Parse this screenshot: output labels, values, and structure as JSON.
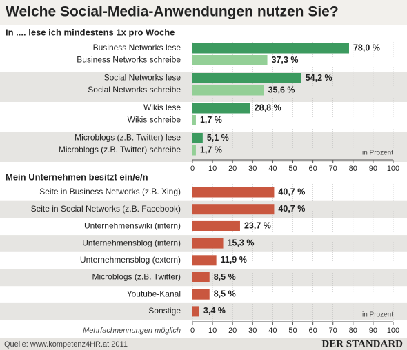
{
  "title": "Welche Social-Media-Anwendungen nutzen Sie?",
  "source": "Quelle: www.kompetenz4HR.at 2011",
  "logo": "DER STANDARD",
  "chart_data": [
    {
      "type": "bar",
      "title": "In .... lese ich mindestens 1x pro Woche",
      "categories": [
        "Business Networks lese",
        "Business Networks schreibe",
        "Social Networks lese",
        "Social Networks schreibe",
        "Wikis lese",
        "Wikis schreibe",
        "Microblogs (z.B. Twitter) lese",
        "Microblogs (z.B. Twitter) schreibe"
      ],
      "values": [
        78.0,
        37.3,
        54.2,
        35.6,
        28.8,
        1.7,
        5.1,
        1.7
      ],
      "value_labels": [
        "78,0 %",
        "37,3 %",
        "54,2 %",
        "35,6 %",
        "28,8 %",
        "1,7 %",
        "5,1 %",
        "1,7 %"
      ],
      "colors": [
        "#3c9a5f",
        "#93cf96",
        "#3c9a5f",
        "#93cf96",
        "#3c9a5f",
        "#93cf96",
        "#3c9a5f",
        "#93cf96"
      ],
      "unit_note": "in Prozent",
      "xlim": [
        0,
        100
      ],
      "xticks": [
        0,
        10,
        20,
        30,
        40,
        50,
        60,
        70,
        80,
        90,
        100
      ],
      "grid": true
    },
    {
      "type": "bar",
      "title": "Mein Unternehmen besitzt ein/e/n",
      "categories": [
        "Seite in Business Networks (z.B. Xing)",
        "Seite in Social Networks (z.B. Facebook)",
        "Unternehmenswiki (intern)",
        "Unternehmensblog (intern)",
        "Unternehmensblog (extern)",
        "Microblogs (z.B. Twitter)",
        "Youtube-Kanal",
        "Sonstige"
      ],
      "values": [
        40.7,
        40.7,
        23.7,
        15.3,
        11.9,
        8.5,
        8.5,
        3.4
      ],
      "value_labels": [
        "40,7 %",
        "40,7 %",
        "23,7 %",
        "15,3 %",
        "11,9 %",
        "8,5 %",
        "8,5 %",
        "3,4 %"
      ],
      "color": "#c9573f",
      "unit_note": "in Prozent",
      "footnote": "Mehrfachnennungen möglich",
      "xlim": [
        0,
        100
      ],
      "xticks": [
        0,
        10,
        20,
        30,
        40,
        50,
        60,
        70,
        80,
        90,
        100
      ],
      "grid": true
    }
  ]
}
